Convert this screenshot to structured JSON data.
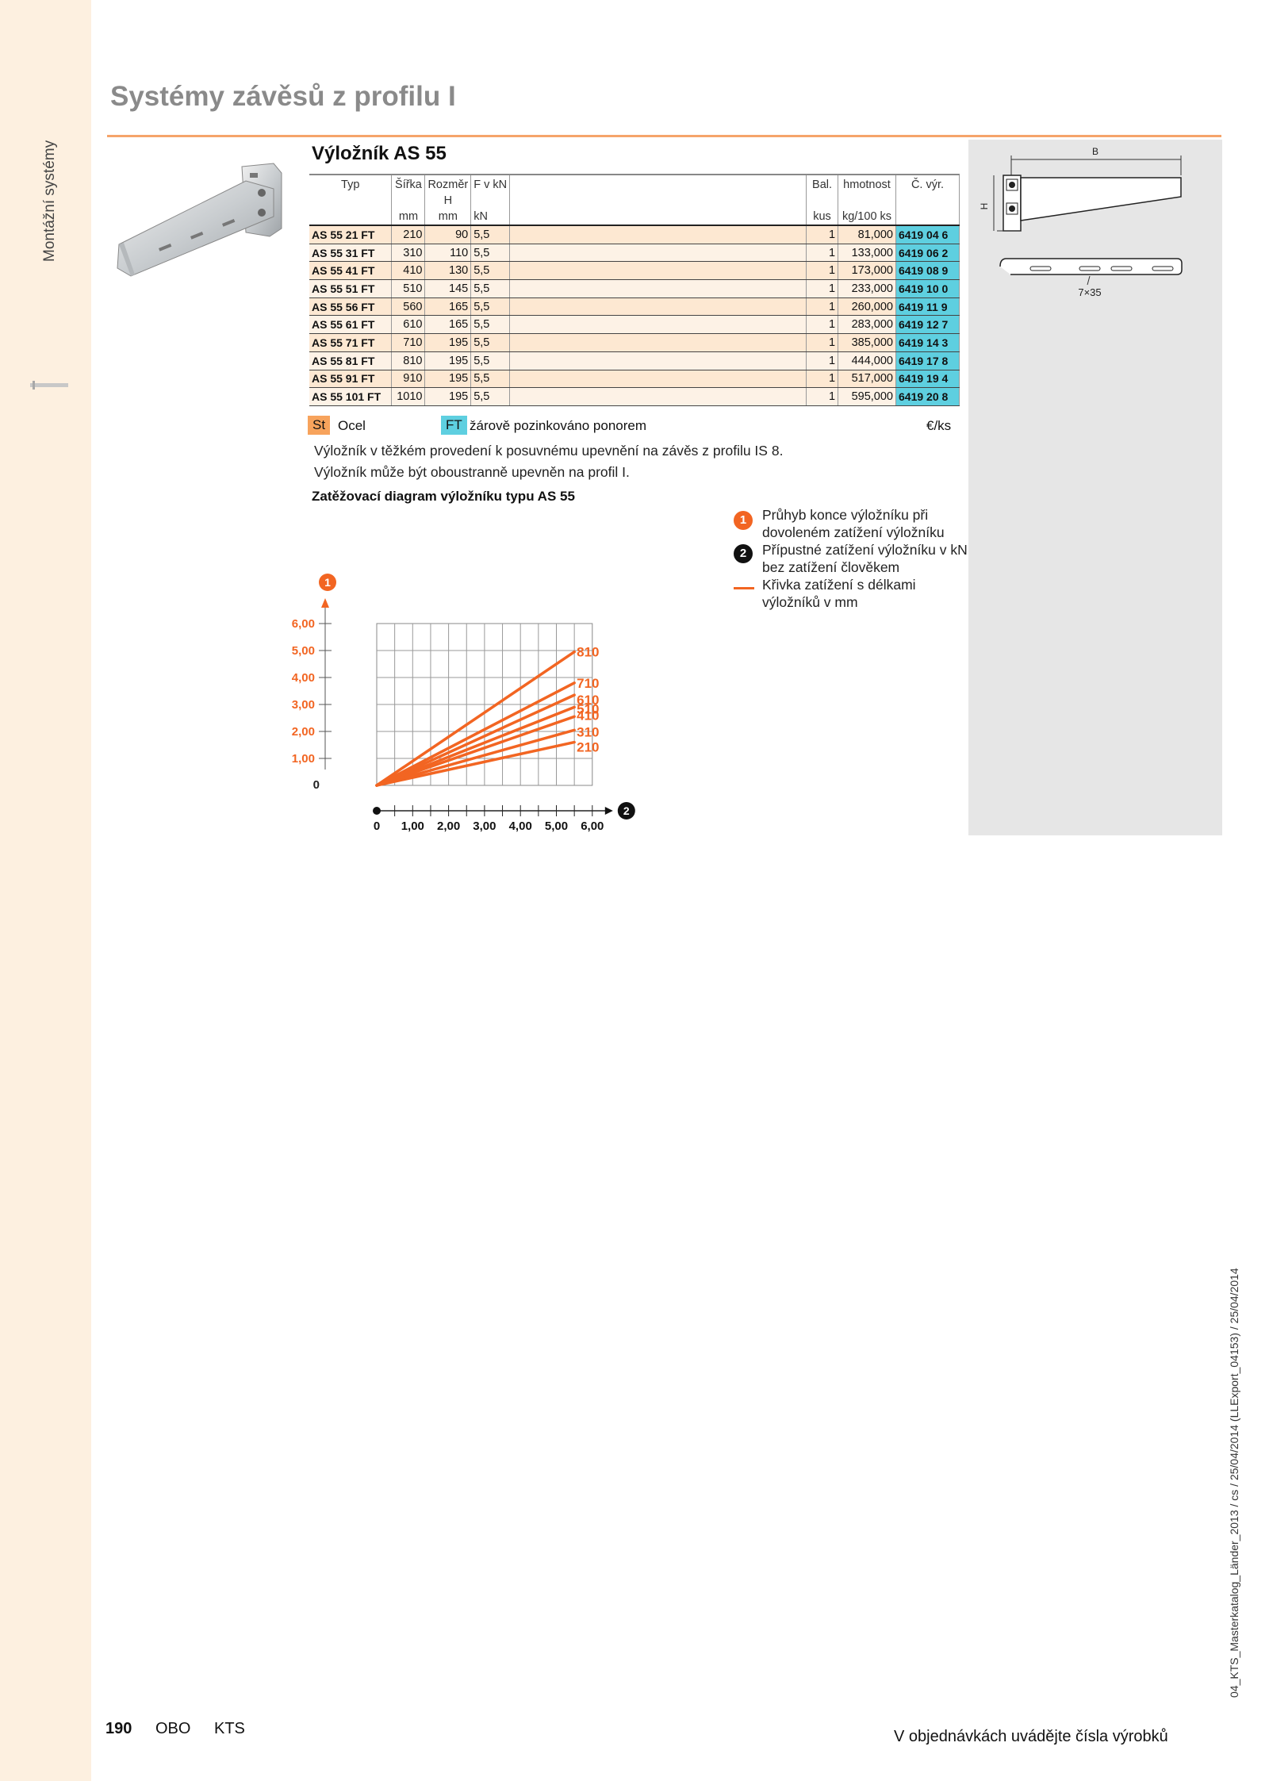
{
  "sidebar": {
    "label": "Montážní systémy"
  },
  "page_title": "Systémy závěsů z profilu I",
  "section_title": "Výložník AS 55",
  "table": {
    "headers": {
      "typ": "Typ",
      "sirka": "Šířka",
      "rozmer": "Rozměr",
      "rozmer2": "H",
      "fv": "F v kN",
      "bal": "Bal.",
      "hmotnost": "hmotnost",
      "cvyr": "Č. výr."
    },
    "units": {
      "sirka": "mm",
      "rozmer": "mm",
      "fv": "kN",
      "bal": "kus",
      "hmotnost": "kg/100 ks"
    },
    "rows": [
      {
        "typ": "AS 55 21 FT",
        "sirka": "210",
        "h": "90",
        "fv": "5,5",
        "bal": "1",
        "hmotnost": "81,000",
        "code": "6419 04 6"
      },
      {
        "typ": "AS 55 31 FT",
        "sirka": "310",
        "h": "110",
        "fv": "5,5",
        "bal": "1",
        "hmotnost": "133,000",
        "code": "6419 06 2"
      },
      {
        "typ": "AS 55 41 FT",
        "sirka": "410",
        "h": "130",
        "fv": "5,5",
        "bal": "1",
        "hmotnost": "173,000",
        "code": "6419 08 9"
      },
      {
        "typ": "AS 55 51 FT",
        "sirka": "510",
        "h": "145",
        "fv": "5,5",
        "bal": "1",
        "hmotnost": "233,000",
        "code": "6419 10 0"
      },
      {
        "typ": "AS 55 56 FT",
        "sirka": "560",
        "h": "165",
        "fv": "5,5",
        "bal": "1",
        "hmotnost": "260,000",
        "code": "6419 11 9"
      },
      {
        "typ": "AS 55 61 FT",
        "sirka": "610",
        "h": "165",
        "fv": "5,5",
        "bal": "1",
        "hmotnost": "283,000",
        "code": "6419 12 7"
      },
      {
        "typ": "AS 55 71 FT",
        "sirka": "710",
        "h": "195",
        "fv": "5,5",
        "bal": "1",
        "hmotnost": "385,000",
        "code": "6419 14 3"
      },
      {
        "typ": "AS 55 81 FT",
        "sirka": "810",
        "h": "195",
        "fv": "5,5",
        "bal": "1",
        "hmotnost": "444,000",
        "code": "6419 17 8"
      },
      {
        "typ": "AS 55 91 FT",
        "sirka": "910",
        "h": "195",
        "fv": "5,5",
        "bal": "1",
        "hmotnost": "517,000",
        "code": "6419 19 4"
      },
      {
        "typ": "AS 55 101 FT",
        "sirka": "1010",
        "h": "195",
        "fv": "5,5",
        "bal": "1",
        "hmotnost": "595,000",
        "code": "6419 20 8"
      }
    ]
  },
  "legend": {
    "st_code": "St",
    "st_text": "Ocel",
    "ft_code": "FT",
    "ft_text": "žárově pozinkováno ponorem",
    "price_unit": "€/ks"
  },
  "description": {
    "line1": "Výložník v těžkém provedení k posuvnému upevnění na závěs z profilu IS 8.",
    "line2": "Výložník může být oboustranně upevněn na profil I."
  },
  "diagram_title": "Zatěžovací diagram výložníku typu AS 55",
  "chart_data": {
    "type": "line",
    "title": "Zatěžovací diagram výložníku typu AS 55",
    "xlabel": "2",
    "ylabel": "1",
    "xlim": [
      0,
      6
    ],
    "ylim": [
      0,
      6
    ],
    "x_ticks": [
      "0",
      "1,00",
      "2,00",
      "3,00",
      "4,00",
      "5,00",
      "6,00"
    ],
    "y_ticks": [
      "0",
      "1,00",
      "2,00",
      "3,00",
      "4,00",
      "5,00",
      "6,00"
    ],
    "grid": true,
    "line_color": "#f26522",
    "series": [
      {
        "name": "810",
        "x": [
          0,
          5.5
        ],
        "y": [
          0,
          4.95
        ]
      },
      {
        "name": "710",
        "x": [
          0,
          5.5
        ],
        "y": [
          0,
          3.8
        ]
      },
      {
        "name": "610",
        "x": [
          0,
          5.5
        ],
        "y": [
          0,
          3.35
        ]
      },
      {
        "name": "510",
        "x": [
          0,
          5.5
        ],
        "y": [
          0,
          2.9
        ]
      },
      {
        "name": "410",
        "x": [
          0,
          5.5
        ],
        "y": [
          0,
          2.55
        ]
      },
      {
        "name": "310",
        "x": [
          0,
          5.5
        ],
        "y": [
          0,
          2.05
        ]
      },
      {
        "name": "210",
        "x": [
          0,
          5.5
        ],
        "y": [
          0,
          1.6
        ]
      }
    ]
  },
  "notes": {
    "n1_key": "1",
    "n1_text": "Průhyb konce výložníku při dovoleném zatížení výložníku",
    "n2_key": "2",
    "n2_text": "Přípustné zatížení výložníku v kN bez zatížení člověkem",
    "n3_text": "Křivka zatížení s délkami výložníků v mm"
  },
  "drawing": {
    "b_label": "B",
    "h_label": "H",
    "slot_label": "7×35"
  },
  "footer": {
    "page_number": "190",
    "brand": "OBO",
    "section": "KTS",
    "right_text": "V objednávkách uvádějte čísla výrobků"
  },
  "vertical_code": "04_KTS_Masterkatalog_Länder_2013 / cs / 25/04/2014 (LLExport_04153) / 25/04/2014"
}
